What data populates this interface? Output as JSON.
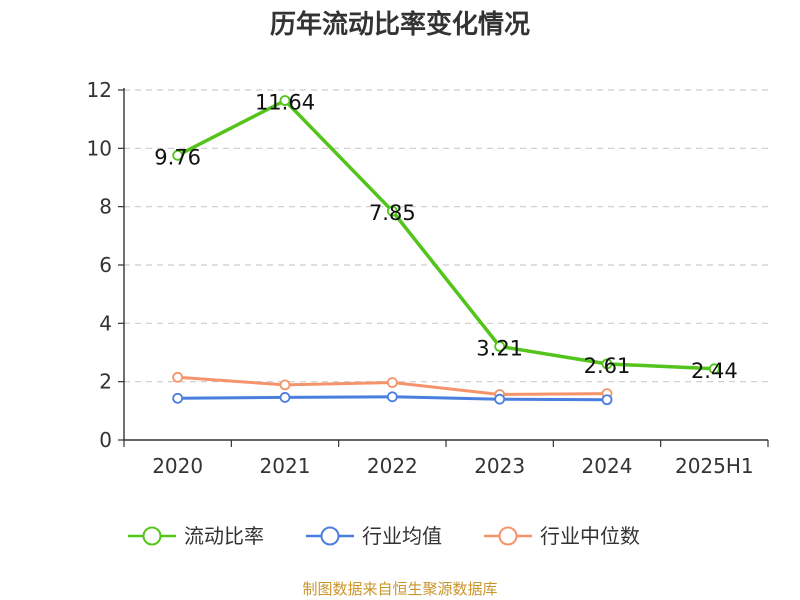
{
  "chart_data": {
    "type": "line",
    "title": "历年流动比率变化情况",
    "source": "制图数据来自恒生聚源数据库",
    "categories": [
      "2020",
      "2021",
      "2022",
      "2023",
      "2024",
      "2025H1"
    ],
    "ylim": [
      0,
      12
    ],
    "yticks": [
      "0",
      "2",
      "4",
      "6",
      "8",
      "10",
      "12"
    ],
    "grid": true,
    "legend_position": "bottom",
    "series": [
      {
        "name": "流动比率",
        "color": "#52c41a",
        "values": [
          9.76,
          11.64,
          7.85,
          3.21,
          2.61,
          2.44
        ],
        "labels": [
          "9.76",
          "11.64",
          "7.85",
          "3.21",
          "2.61",
          "2.44"
        ]
      },
      {
        "name": "行业均值",
        "color": "#4a7fe0",
        "values": [
          1.43,
          1.46,
          1.48,
          1.4,
          1.38,
          null
        ]
      },
      {
        "name": "行业中位数",
        "color": "#f5936a",
        "values": [
          2.15,
          1.89,
          1.97,
          1.56,
          1.59,
          null
        ]
      }
    ]
  }
}
